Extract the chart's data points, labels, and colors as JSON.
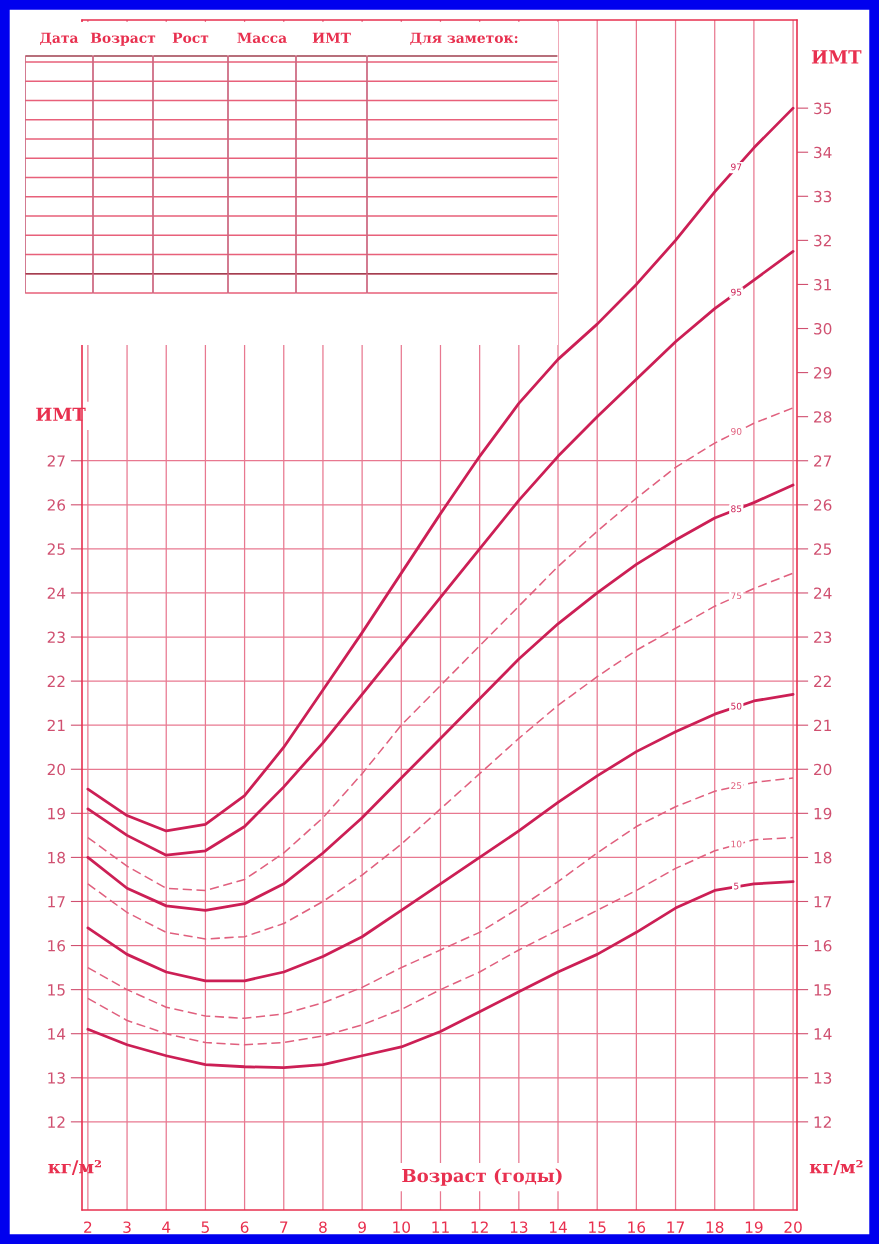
{
  "chart_data": [
    {
      "type": "line",
      "xlabel": "Возраст (годы)",
      "ylabel": "ИМТ",
      "y2label": "ИМТ",
      "x": [
        2,
        3,
        4,
        5,
        6,
        7,
        8,
        9,
        10,
        11,
        12,
        13,
        14,
        15,
        16,
        17,
        18,
        19,
        20
      ],
      "series": [
        {
          "name": "97",
          "color": "#cc1f55",
          "line_style": "solid",
          "values": [
            19.55,
            18.95,
            18.6,
            18.75,
            19.4,
            20.5,
            21.8,
            23.1,
            24.45,
            25.8,
            27.1,
            28.3,
            29.3,
            30.1,
            31.0,
            32.0,
            33.1,
            34.1,
            35.0
          ]
        },
        {
          "name": "95",
          "color": "#cc1f55",
          "line_style": "solid",
          "values": [
            19.1,
            18.5,
            18.05,
            18.15,
            18.7,
            19.6,
            20.6,
            21.7,
            22.8,
            23.9,
            25.0,
            26.1,
            27.1,
            28.0,
            28.85,
            29.7,
            30.45,
            31.1,
            31.75
          ]
        },
        {
          "name": "90",
          "color": "#e0607e",
          "line_style": "dashed",
          "values": [
            18.45,
            17.8,
            17.3,
            17.25,
            17.5,
            18.1,
            18.9,
            19.9,
            21.0,
            21.9,
            22.8,
            23.7,
            24.6,
            25.4,
            26.15,
            26.85,
            27.4,
            27.85,
            28.2
          ]
        },
        {
          "name": "85",
          "color": "#cc1f55",
          "line_style": "solid",
          "values": [
            18.0,
            17.3,
            16.9,
            16.8,
            16.95,
            17.4,
            18.1,
            18.9,
            19.8,
            20.7,
            21.6,
            22.5,
            23.3,
            24.0,
            24.65,
            25.2,
            25.7,
            26.05,
            26.45
          ]
        },
        {
          "name": "75",
          "color": "#e0607e",
          "line_style": "dashed",
          "values": [
            17.4,
            16.75,
            16.3,
            16.15,
            16.2,
            16.5,
            17.0,
            17.6,
            18.3,
            19.1,
            19.9,
            20.7,
            21.45,
            22.1,
            22.7,
            23.2,
            23.7,
            24.1,
            24.45
          ]
        },
        {
          "name": "50",
          "color": "#cc1f55",
          "line_style": "solid",
          "values": [
            16.4,
            15.8,
            15.4,
            15.2,
            15.2,
            15.4,
            15.75,
            16.2,
            16.8,
            17.4,
            18.0,
            18.6,
            19.25,
            19.85,
            20.4,
            20.85,
            21.25,
            21.55,
            21.7
          ]
        },
        {
          "name": "25",
          "color": "#e0607e",
          "line_style": "dashed",
          "values": [
            15.5,
            15.0,
            14.6,
            14.4,
            14.35,
            14.45,
            14.7,
            15.05,
            15.5,
            15.9,
            16.3,
            16.85,
            17.45,
            18.1,
            18.7,
            19.15,
            19.5,
            19.7,
            19.8
          ]
        },
        {
          "name": "10",
          "color": "#e0607e",
          "line_style": "dashed",
          "values": [
            14.8,
            14.3,
            14.0,
            13.8,
            13.75,
            13.8,
            13.95,
            14.2,
            14.55,
            15.0,
            15.4,
            15.9,
            16.35,
            16.8,
            17.25,
            17.75,
            18.15,
            18.4,
            18.45
          ]
        },
        {
          "name": "5",
          "color": "#cc1f55",
          "line_style": "solid",
          "values": [
            14.1,
            13.75,
            13.5,
            13.3,
            13.25,
            13.23,
            13.3,
            13.5,
            13.7,
            14.05,
            14.5,
            14.95,
            15.4,
            15.8,
            16.3,
            16.85,
            17.25,
            17.4,
            17.45
          ]
        }
      ],
      "xlim": [
        1.85,
        20.1
      ],
      "xticks": [
        2,
        3,
        4,
        5,
        6,
        7,
        8,
        9,
        10,
        11,
        12,
        13,
        14,
        15,
        16,
        17,
        18,
        19,
        20
      ],
      "ylim": [
        10,
        37
      ],
      "yticks": [
        12,
        13,
        14,
        15,
        16,
        17,
        18,
        19,
        20,
        21,
        22,
        23,
        24,
        25,
        26,
        27
      ],
      "y2lim": [
        10,
        37
      ],
      "y2ticks": [
        12,
        13,
        14,
        15,
        16,
        17,
        18,
        19,
        20,
        21,
        22,
        23,
        24,
        25,
        26,
        27,
        28,
        29,
        30,
        31,
        32,
        33,
        34,
        35
      ],
      "grid": true,
      "legend": false,
      "marker": "none",
      "annotations": [
        "кг/м²",
        "кг/м²"
      ]
    },
    {
      "type": "other",
      "annotations": [
        "Дата",
        "Возраст",
        "Рост",
        "Масса",
        "ИМТ",
        "Для заметок:"
      ]
    }
  ]
}
